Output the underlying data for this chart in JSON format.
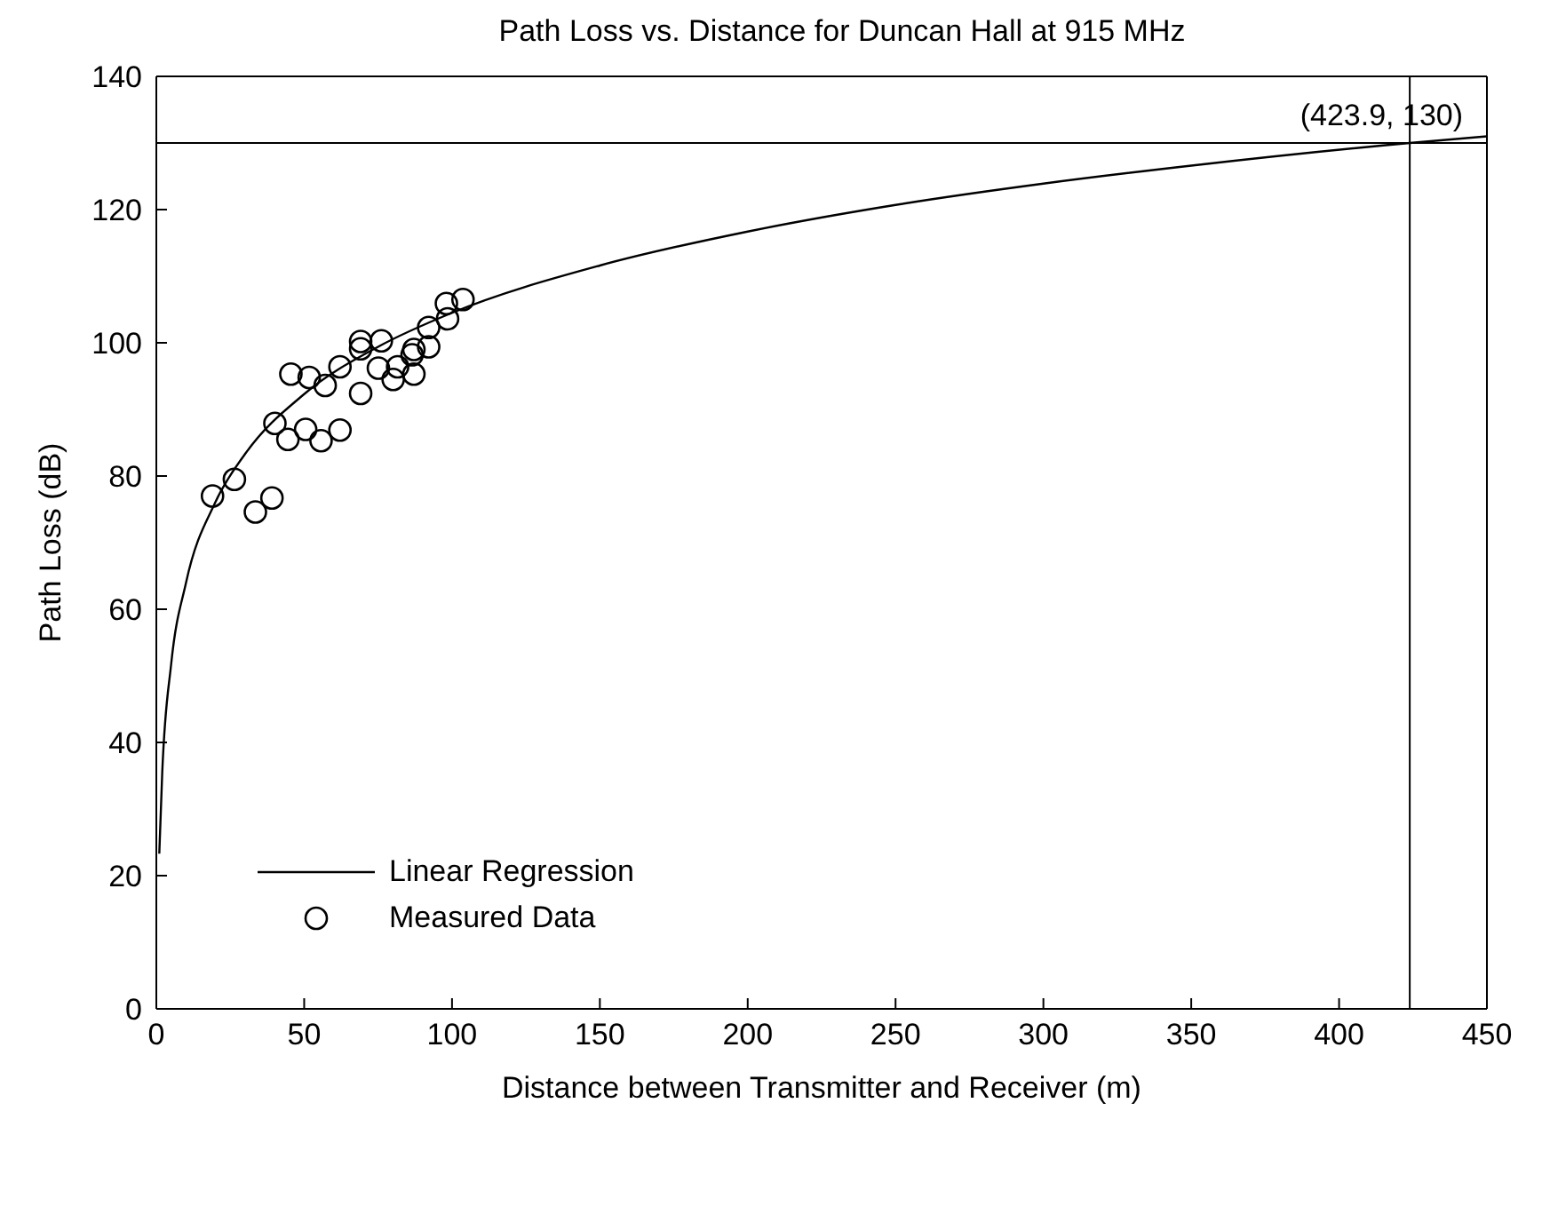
{
  "chart_data": {
    "type": "scatter",
    "title": "Path Loss vs. Distance for Duncan Hall at 915 MHz",
    "xlabel": "Distance between Transmitter and Receiver (m)",
    "ylabel": "Path Loss (dB)",
    "xlim": [
      0,
      450
    ],
    "xticks": [
      0,
      50,
      100,
      150,
      200,
      250,
      300,
      350,
      400,
      450
    ],
    "ylim": [
      0,
      140
    ],
    "yticks": [
      0,
      20,
      40,
      60,
      80,
      100,
      120,
      140
    ],
    "grid": false,
    "legend": "left",
    "series": [
      {
        "name": "Linear Regression",
        "type": "line",
        "color": "#000000",
        "marker": "none",
        "line_style": "solid",
        "x": [
          1,
          2,
          5,
          10,
          20,
          30,
          50,
          75,
          100,
          150,
          200,
          250,
          300,
          350,
          423.9,
          450
        ],
        "values": [
          23.3,
          35.5,
          51.7,
          63.9,
          76.1,
          83.3,
          92.3,
          99.4,
          104.5,
          111.6,
          116.7,
          120.7,
          123.9,
          126.6,
          130,
          131
        ]
      },
      {
        "name": "Measured Data",
        "type": "scatter",
        "color": "#000000",
        "marker": "circle",
        "x": [
          19.0,
          26.4,
          33.5,
          39.1,
          40.1,
          44.5,
          45.5,
          50.5,
          51.7,
          55.7,
          57.1,
          62.1,
          62.1,
          69.1,
          69.1,
          69.1,
          76.1,
          75.1,
          80.1,
          81.6,
          87.1,
          86.5,
          87.1,
          92.1,
          92.1,
          98.1,
          98.5,
          103.7
        ],
        "values": [
          77.0,
          79.5,
          74.6,
          76.7,
          87.9,
          85.5,
          95.3,
          87.0,
          94.8,
          85.3,
          93.6,
          86.9,
          96.4,
          92.4,
          100.2,
          99.1,
          100.3,
          96.2,
          94.5,
          96.4,
          95.3,
          98.2,
          99.0,
          99.4,
          102.3,
          105.9,
          103.6,
          106.5
        ]
      }
    ],
    "ref_lines": [
      {
        "axis": "y",
        "value": 130,
        "color": "#000000"
      },
      {
        "axis": "x",
        "value": 423.9,
        "color": "#000000"
      }
    ],
    "annotations": [
      {
        "text": "(423.9, 130)",
        "x": 423.9,
        "y": 130
      }
    ]
  }
}
